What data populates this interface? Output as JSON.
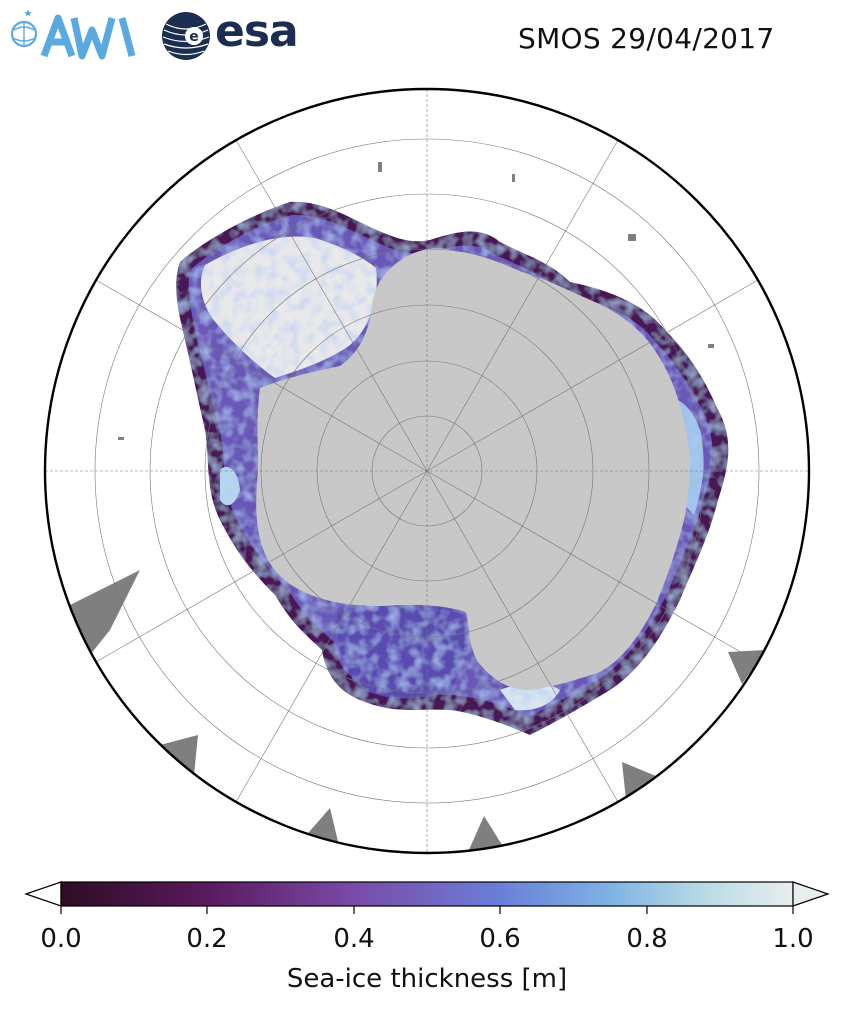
{
  "header": {
    "title": "SMOS 29/04/2017",
    "logos": [
      {
        "name": "awi-logo",
        "text": "AWI",
        "color": "#5aa9e0"
      },
      {
        "name": "esa-logo",
        "text": "esa",
        "color": "#1c2d52"
      }
    ]
  },
  "map": {
    "projection": "south-polar-stereographic",
    "land_color": "#c8c8c8",
    "missing_color": "#7f7f7f",
    "ocean_color": "#ffffff",
    "graticule": true
  },
  "colorbar": {
    "label": "Sea-ice thickness [m]",
    "ticks": [
      "0.0",
      "0.2",
      "0.4",
      "0.6",
      "0.8",
      "1.0"
    ],
    "range": [
      0.0,
      1.0
    ],
    "extend": "both",
    "colormap_stops": [
      "#2d0d24",
      "#5a1a5e",
      "#7a4aa8",
      "#6a7fd8",
      "#7fb2e3",
      "#b9dbe6",
      "#e8eeee"
    ]
  }
}
